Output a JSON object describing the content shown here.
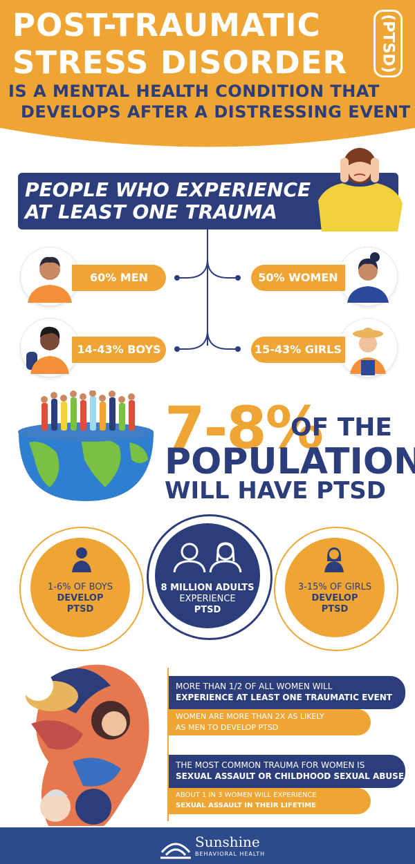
{
  "header": {
    "title_line1": "POST-TRAUMATIC",
    "title_line2": "STRESS DISORDER",
    "acronym": "(PTSD)",
    "subtitle_line1": "IS A MENTAL HEALTH CONDITION THAT",
    "subtitle_line2": "DEVELOPS AFTER A DISTRESSING EVENT"
  },
  "trauma": {
    "banner_line1": "PEOPLE WHO EXPERIENCE",
    "banner_line2": "AT LEAST ONE TRAUMA",
    "men": "60% MEN",
    "women": "50% WOMEN",
    "boys": "14-43% BOYS",
    "girls": "15-43% GIRLS"
  },
  "population": {
    "percent": "7-8%",
    "of_the": "OF THE",
    "line2": "POPULATION",
    "line3": "WILL HAVE PTSD"
  },
  "circles": {
    "boys_l1": "1-6% OF BOYS",
    "boys_l2": "DEVELOP",
    "boys_l3": "PTSD",
    "adults_l1": "8 MILLION ADULTS",
    "adults_l2": "EXPERIENCE",
    "adults_l3": "PTSD",
    "girls_l1": "3-15% OF GIRLS",
    "girls_l2": "DEVELOP",
    "girls_l3": "PTSD"
  },
  "women": {
    "fact1_l1": "MORE THAN 1/2 OF ALL WOMEN WILL",
    "fact1_l2": "EXPERIENCE AT LEAST ONE TRAUMATIC EVENT",
    "fact2_l1": "WOMEN ARE MORE THAN 2X AS LIKELY",
    "fact2_l2": "AS MEN TO DEVELOP PTSD",
    "fact3_l1": "THE MOST COMMON TRAUMA FOR WOMEN IS",
    "fact3_l2": "SEXUAL ASSAULT OR CHILDHOOD SEXUAL ABUSE",
    "fact4_l1": "ABOUT 1 IN 3 WOMEN WILL EXPERIENCE",
    "fact4_l2": "SEXUAL ASSAULT IN THEIR LIFETIME"
  },
  "footer": {
    "brand": "Sunshine",
    "brand_sub": "BEHAVIORAL HEALTH"
  },
  "colors": {
    "orange": "#efa534",
    "navy": "#2c3d7c",
    "footer_blue": "#2c4a8c"
  }
}
